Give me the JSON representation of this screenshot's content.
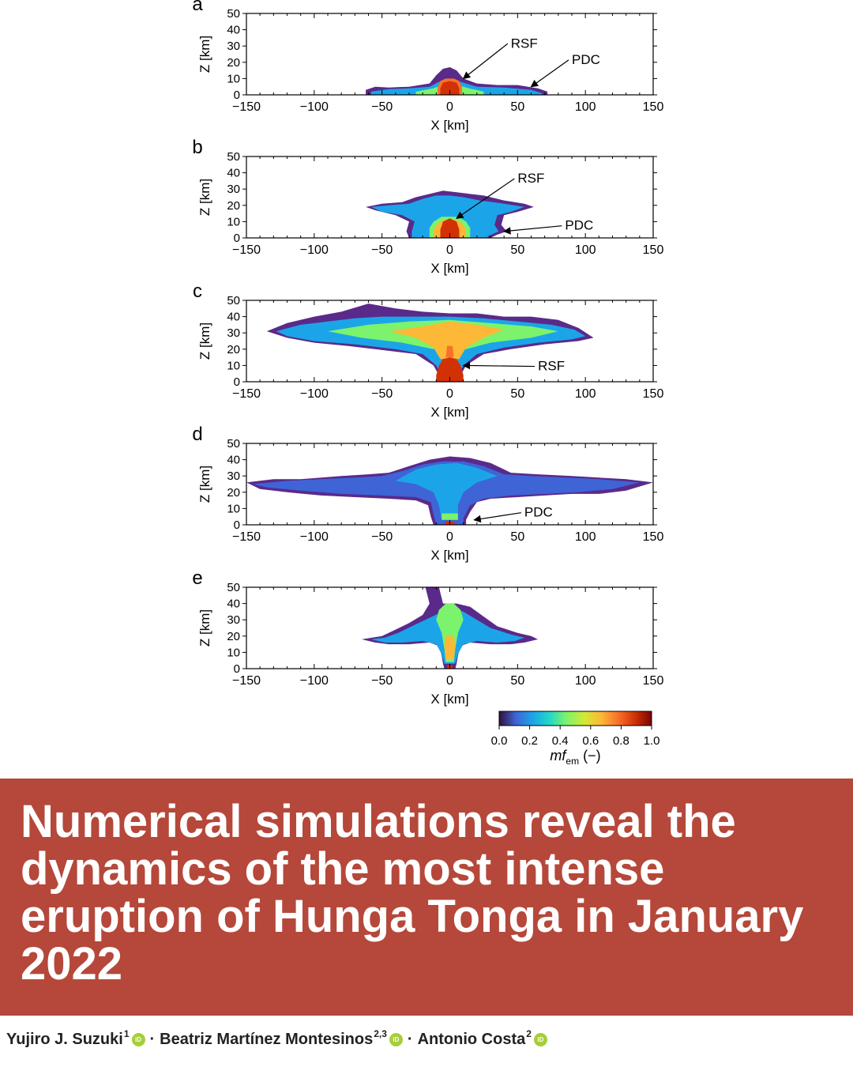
{
  "chart_data": [
    {
      "type": "heatmap",
      "panel": "a",
      "xlabel": "X [km]",
      "ylabel": "Z [km]",
      "xlim": [
        -150,
        150
      ],
      "ylim": [
        0,
        50
      ],
      "xticks": [
        "−150",
        "−100",
        "−50",
        "0",
        "50",
        "100",
        "150"
      ],
      "yticks": [
        "0",
        "10",
        "20",
        "30",
        "40",
        "50"
      ],
      "annotations": [
        {
          "text": "RSF",
          "at": [
            10,
            10
          ]
        },
        {
          "text": "PDC",
          "at": [
            60,
            5
          ]
        }
      ]
    },
    {
      "type": "heatmap",
      "panel": "b",
      "xlabel": "X [km]",
      "ylabel": "Z [km]",
      "xlim": [
        -150,
        150
      ],
      "ylim": [
        0,
        50
      ],
      "xticks": [
        "−150",
        "−100",
        "−50",
        "0",
        "50",
        "100",
        "150"
      ],
      "yticks": [
        "0",
        "10",
        "20",
        "30",
        "40",
        "50"
      ],
      "annotations": [
        {
          "text": "RSF",
          "at": [
            5,
            12
          ]
        },
        {
          "text": "PDC",
          "at": [
            40,
            4
          ]
        }
      ]
    },
    {
      "type": "heatmap",
      "panel": "c",
      "xlabel": "X [km]",
      "ylabel": "Z [km]",
      "xlim": [
        -150,
        150
      ],
      "ylim": [
        0,
        50
      ],
      "xticks": [
        "−150",
        "−100",
        "−50",
        "0",
        "50",
        "100",
        "150"
      ],
      "yticks": [
        "0",
        "10",
        "20",
        "30",
        "40",
        "50"
      ],
      "annotations": [
        {
          "text": "RSF",
          "at": [
            10,
            10
          ]
        }
      ]
    },
    {
      "type": "heatmap",
      "panel": "d",
      "xlabel": "X [km]",
      "ylabel": "Z [km]",
      "xlim": [
        -150,
        150
      ],
      "ylim": [
        0,
        50
      ],
      "xticks": [
        "−150",
        "−100",
        "−50",
        "0",
        "50",
        "100",
        "150"
      ],
      "yticks": [
        "0",
        "10",
        "20",
        "30",
        "40",
        "50"
      ],
      "annotations": [
        {
          "text": "PDC",
          "at": [
            18,
            3
          ]
        }
      ]
    },
    {
      "type": "heatmap",
      "panel": "e",
      "xlabel": "X [km]",
      "ylabel": "Z [km]",
      "xlim": [
        -150,
        150
      ],
      "ylim": [
        0,
        50
      ],
      "xticks": [
        "−150",
        "−100",
        "−50",
        "0",
        "50",
        "100",
        "150"
      ],
      "yticks": [
        "0",
        "10",
        "20",
        "30",
        "40",
        "50"
      ],
      "annotations": []
    }
  ],
  "colorbar": {
    "ticks": [
      "0.0",
      "0.2",
      "0.4",
      "0.6",
      "0.8",
      "1.0"
    ],
    "label": "mf",
    "label_sub": "em",
    "label_suffix": " (−)",
    "colors": [
      "#30123b",
      "#3e64d6",
      "#1ba5e8",
      "#23d7c7",
      "#7cf36c",
      "#d4e934",
      "#fcb836",
      "#f8712a",
      "#d23105",
      "#7a0403"
    ]
  },
  "banner": {
    "title": "Numerical simulations reveal the dynamics of the most intense eruption of Hunga Tonga in January 2022",
    "color": "#b5483a"
  },
  "authors": [
    {
      "name": "Yujiro J. Suzuki",
      "aff": "1"
    },
    {
      "name": "Beatriz Martínez Montesinos",
      "aff": "2,3"
    },
    {
      "name": "Antonio Costa",
      "aff": "2"
    }
  ],
  "orcid_label": "iD",
  "author_separator": "·"
}
